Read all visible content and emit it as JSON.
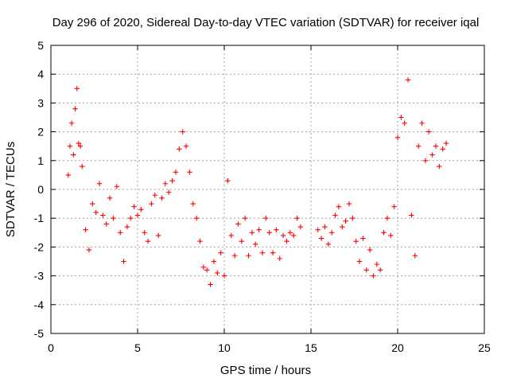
{
  "chart_data": {
    "type": "scatter",
    "title": "Day 296 of 2020, Sidereal Day-to-day VTEC variation (SDTVAR) for receiver iqal",
    "xlabel": "GPS time / hours",
    "ylabel": "SDTVAR / TECUs",
    "xlim": [
      0,
      25
    ],
    "ylim": [
      -5,
      5
    ],
    "xticks": [
      0,
      5,
      10,
      15,
      20,
      25
    ],
    "xtick_labels": [
      "0",
      "5",
      "10",
      "15",
      "20",
      "25"
    ],
    "yticks": [
      -5,
      -4,
      -3,
      -2,
      -1,
      0,
      1,
      2,
      3,
      4,
      5
    ],
    "ytick_labels": [
      "-5",
      "-4",
      "-3",
      "-2",
      "-1",
      "0",
      "1",
      "2",
      "3",
      "4",
      "5"
    ],
    "grid": true,
    "marker": "+",
    "color": "#ff0000",
    "series": [
      {
        "name": "SDTVAR",
        "x": [
          1.0,
          1.1,
          1.2,
          1.3,
          1.4,
          1.5,
          1.6,
          1.7,
          1.8,
          2.0,
          2.2,
          2.4,
          2.6,
          2.8,
          3.0,
          3.2,
          3.4,
          3.6,
          3.8,
          4.0,
          4.2,
          4.4,
          4.6,
          4.8,
          5.0,
          5.2,
          5.4,
          5.6,
          5.8,
          6.0,
          6.2,
          6.4,
          6.6,
          6.8,
          7.0,
          7.2,
          7.4,
          7.6,
          7.8,
          8.0,
          8.2,
          8.4,
          8.6,
          8.8,
          9.0,
          9.2,
          9.4,
          9.6,
          9.8,
          10.0,
          10.2,
          10.4,
          10.6,
          10.8,
          11.0,
          11.2,
          11.4,
          11.6,
          11.8,
          12.0,
          12.2,
          12.4,
          12.6,
          12.8,
          13.0,
          13.2,
          13.4,
          13.6,
          13.8,
          14.0,
          14.2,
          14.4,
          15.4,
          15.6,
          15.8,
          16.0,
          16.2,
          16.4,
          16.6,
          16.8,
          17.0,
          17.2,
          17.4,
          17.6,
          17.8,
          18.0,
          18.2,
          18.4,
          18.6,
          18.8,
          19.0,
          19.2,
          19.4,
          19.6,
          19.8,
          20.0,
          20.2,
          20.4,
          20.6,
          20.8,
          21.0,
          21.2,
          21.4,
          21.6,
          21.8,
          22.0,
          22.2,
          22.4,
          22.6,
          22.8
        ],
        "y": [
          0.5,
          1.5,
          2.3,
          1.2,
          2.8,
          3.5,
          1.6,
          1.5,
          0.8,
          -1.4,
          -2.1,
          -0.5,
          -0.8,
          0.2,
          -0.9,
          -1.2,
          -0.3,
          -1.0,
          0.1,
          -1.5,
          -2.5,
          -1.3,
          -1.0,
          -0.6,
          -0.9,
          -0.7,
          -1.5,
          -1.8,
          -0.5,
          -0.2,
          -1.6,
          -0.3,
          0.2,
          -0.1,
          0.3,
          0.6,
          1.4,
          2.0,
          1.5,
          0.6,
          -0.5,
          -1.0,
          -1.8,
          -2.7,
          -2.8,
          -3.3,
          -2.5,
          -2.9,
          -2.2,
          -3.0,
          0.3,
          -1.6,
          -2.3,
          -1.2,
          -1.8,
          -1.0,
          -2.3,
          -1.5,
          -1.9,
          -1.4,
          -2.2,
          -1.0,
          -1.5,
          -2.2,
          -1.4,
          -2.4,
          -1.6,
          -1.8,
          -1.5,
          -1.6,
          -1.0,
          -1.3,
          -1.4,
          -1.7,
          -1.3,
          -1.9,
          -1.5,
          -0.9,
          -0.6,
          -1.3,
          -1.1,
          -0.5,
          -1.0,
          -1.8,
          -2.5,
          -1.7,
          -2.8,
          -2.1,
          -3.0,
          -2.6,
          -2.8,
          -1.5,
          -1.0,
          -1.6,
          -0.6,
          1.8,
          2.5,
          2.3,
          3.8,
          -0.9,
          -2.3,
          1.5,
          2.3,
          1.0,
          2.0,
          1.2,
          1.5,
          0.8,
          1.4,
          1.6
        ]
      }
    ]
  }
}
